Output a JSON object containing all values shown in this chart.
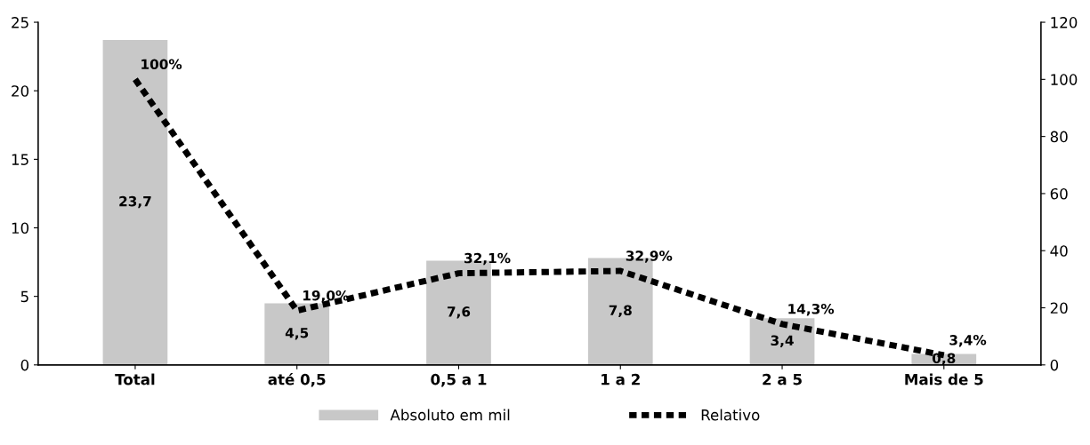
{
  "chart_data": {
    "type": "bar",
    "categories": [
      "Total",
      "até 0,5",
      "0,5 a 1",
      "1 a 2",
      "2 a 5",
      "Mais de 5"
    ],
    "series": [
      {
        "name": "Absoluto em mil",
        "color": "#c8c8c8",
        "values": [
          23.7,
          4.5,
          7.6,
          7.8,
          3.4,
          0.8
        ],
        "value_labels": [
          "23,7",
          "4,5",
          "7,6",
          "7,8",
          "3,4",
          "0,8"
        ]
      },
      {
        "name": "Relativo",
        "type": "line",
        "axis": "y2",
        "color": "#000000",
        "line_style": "dotted",
        "values": [
          100,
          19.0,
          32.1,
          32.9,
          14.3,
          3.4
        ],
        "value_labels": [
          "100%",
          "19,0%",
          "32,1%",
          "32,9%",
          "14,3%",
          "3,4%"
        ]
      }
    ],
    "ylim": [
      0,
      25
    ],
    "yticks": [
      0,
      5,
      10,
      15,
      20,
      25
    ],
    "y2lim": [
      0,
      120
    ],
    "y2ticks": [
      0,
      20,
      40,
      60,
      80,
      100,
      120
    ],
    "grid": false,
    "legend": "bottom",
    "marker": "none"
  }
}
